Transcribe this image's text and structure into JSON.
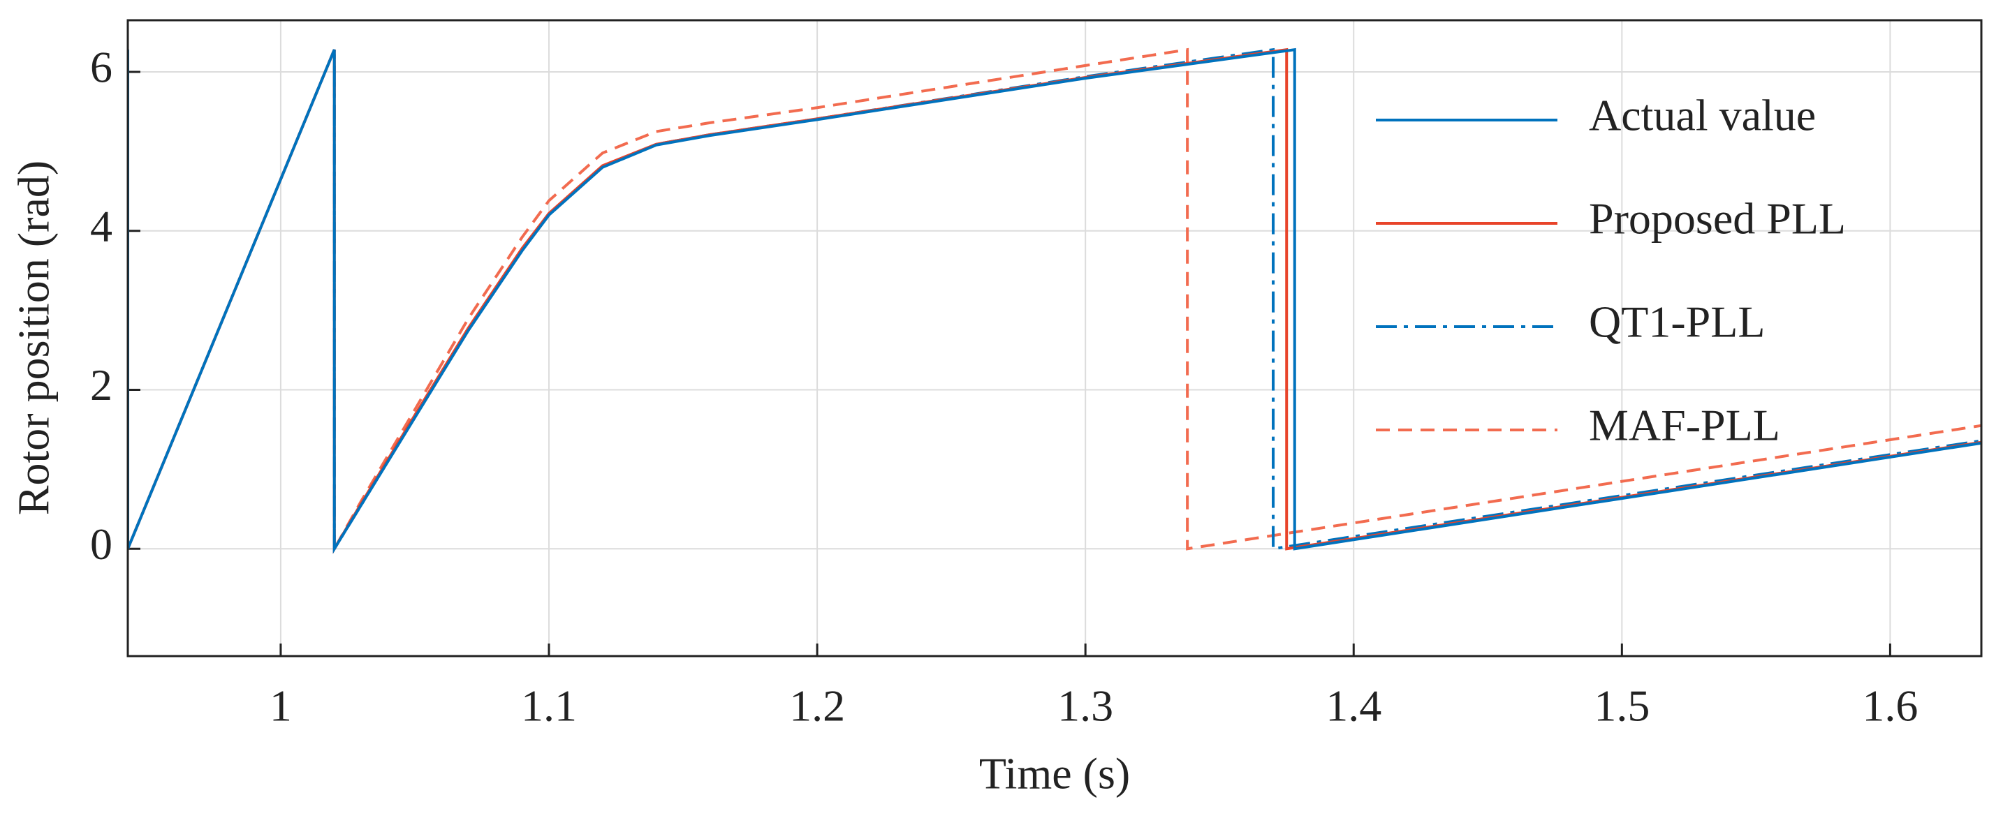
{
  "chart_data": {
    "type": "line",
    "xlabel": "Time (s)",
    "ylabel": "Rotor position (rad)",
    "xlim": [
      0.943,
      1.634
    ],
    "ylim": [
      -1.35,
      6.65
    ],
    "xticks": [
      1,
      1.1,
      1.2,
      1.3,
      1.4,
      1.5,
      1.6
    ],
    "yticks": [
      0,
      2,
      4,
      6
    ],
    "grid": true,
    "legend": "upper right",
    "series": [
      {
        "name": "Actual value",
        "color": "#0072bd",
        "style": "solid",
        "x": [
          0.943,
          0.943,
          1.02,
          1.02,
          1.03,
          1.05,
          1.07,
          1.09,
          1.1,
          1.12,
          1.14,
          1.16,
          1.2,
          1.3,
          1.378,
          1.378,
          1.634
        ],
        "values": [
          6.28,
          0,
          6.28,
          0,
          0.55,
          1.65,
          2.75,
          3.75,
          4.2,
          4.8,
          5.08,
          5.2,
          5.4,
          5.92,
          6.28,
          0,
          1.33
        ]
      },
      {
        "name": "Proposed PLL",
        "color": "#e8442a",
        "style": "solid",
        "x": [
          0.943,
          0.943,
          1.02,
          1.02,
          1.03,
          1.05,
          1.07,
          1.09,
          1.1,
          1.12,
          1.14,
          1.16,
          1.2,
          1.3,
          1.375,
          1.375,
          1.634
        ],
        "values": [
          6.28,
          0,
          6.28,
          0,
          0.57,
          1.68,
          2.78,
          3.78,
          4.22,
          4.82,
          5.09,
          5.21,
          5.41,
          5.93,
          6.28,
          0,
          1.34
        ]
      },
      {
        "name": "QT1-PLL",
        "color": "#0072bd",
        "style": "dashdot",
        "x": [
          0.943,
          0.943,
          1.02,
          1.02,
          1.03,
          1.05,
          1.07,
          1.09,
          1.1,
          1.12,
          1.14,
          1.16,
          1.2,
          1.3,
          1.37,
          1.37,
          1.634
        ],
        "values": [
          6.28,
          0,
          6.28,
          0,
          0.55,
          1.66,
          2.76,
          3.76,
          4.2,
          4.81,
          5.09,
          5.21,
          5.41,
          5.94,
          6.28,
          0,
          1.36
        ]
      },
      {
        "name": "MAF-PLL",
        "color": "#f26b4f",
        "style": "dashed",
        "x": [
          0.943,
          0.943,
          1.02,
          1.02,
          1.03,
          1.05,
          1.07,
          1.09,
          1.1,
          1.12,
          1.14,
          1.16,
          1.2,
          1.3,
          1.338,
          1.338,
          1.634
        ],
        "values": [
          6.28,
          0,
          6.28,
          0,
          0.6,
          1.75,
          2.9,
          3.92,
          4.38,
          4.98,
          5.25,
          5.36,
          5.55,
          6.08,
          6.28,
          0,
          1.55
        ]
      }
    ]
  }
}
